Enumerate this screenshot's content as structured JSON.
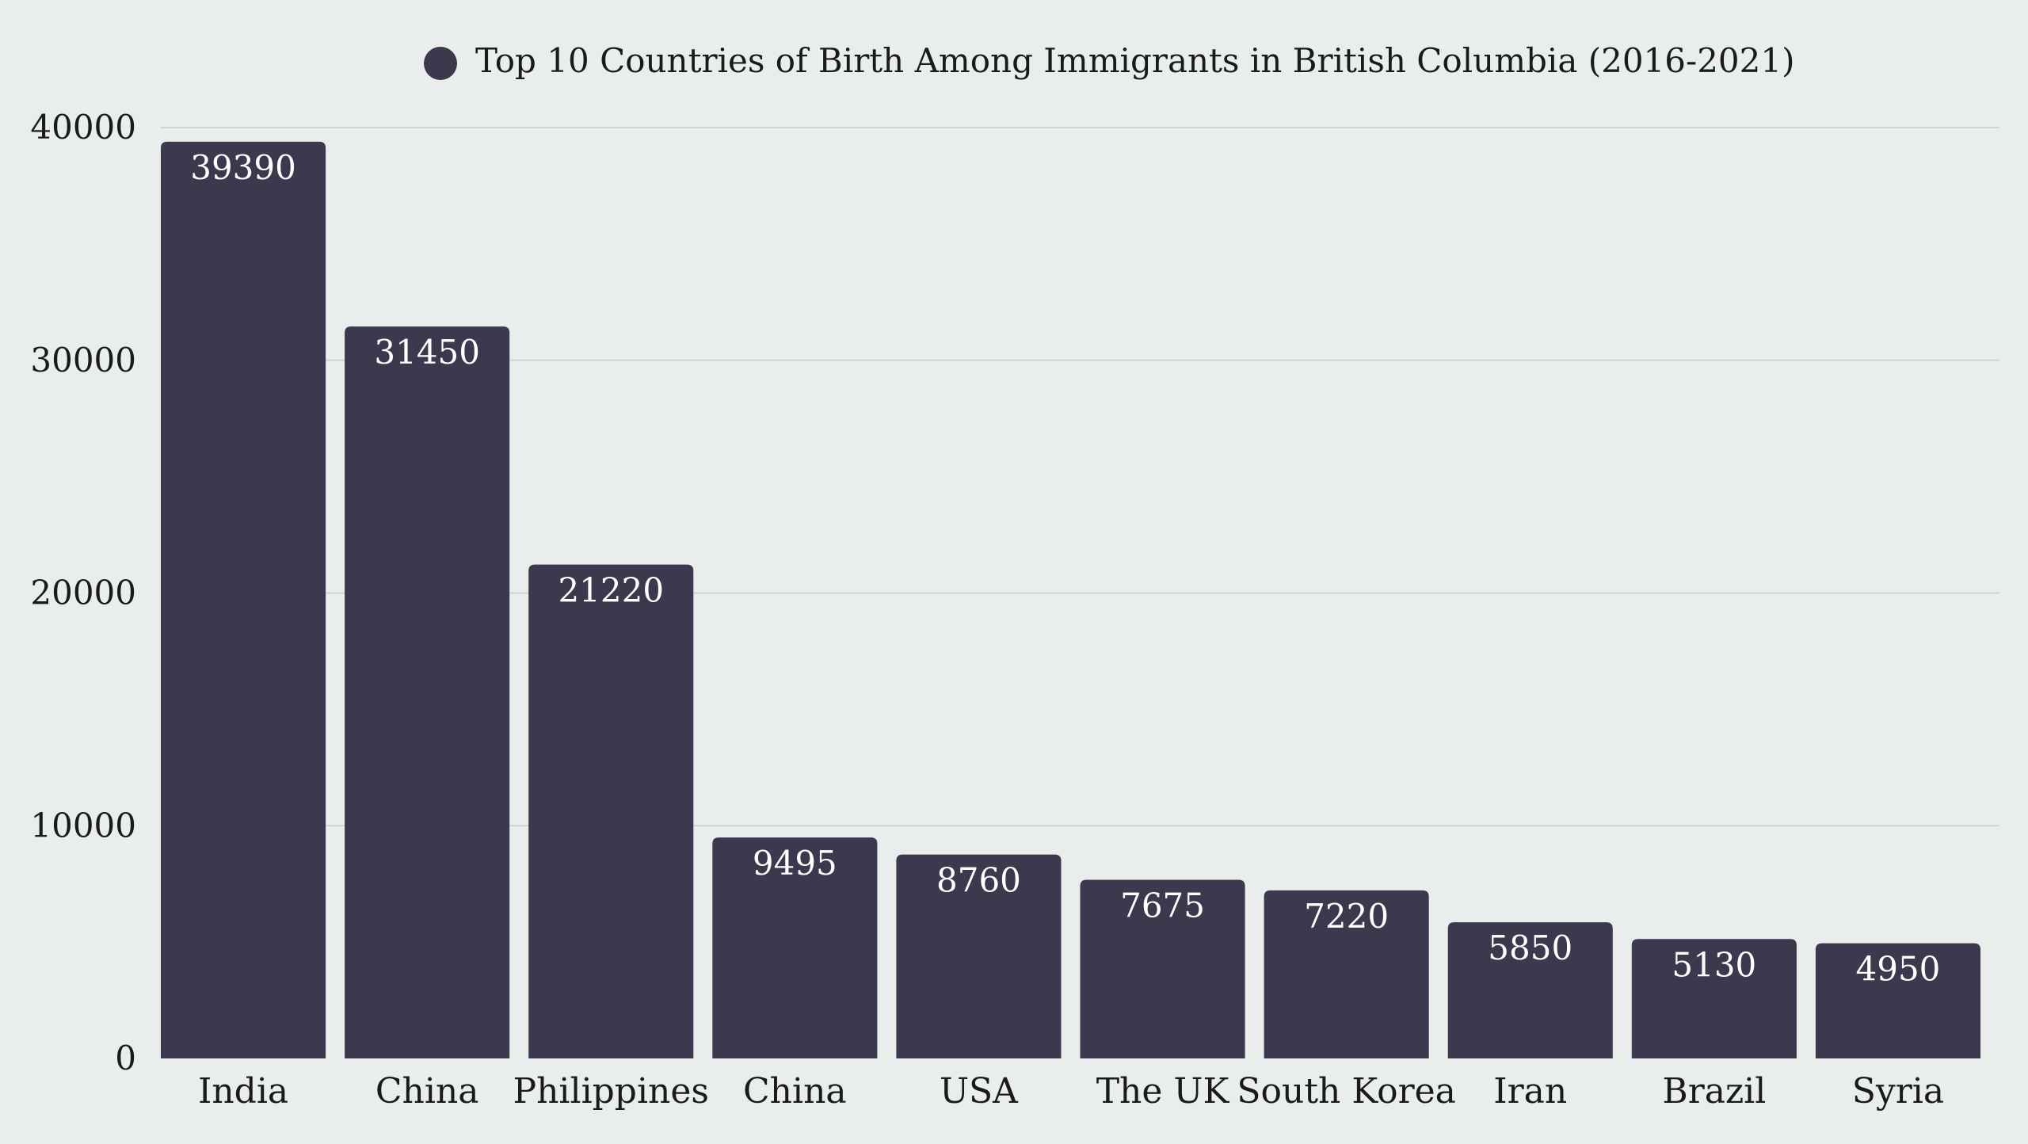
{
  "chart_data": {
    "type": "bar",
    "title": "",
    "xlabel": "",
    "ylabel": "",
    "legend": {
      "position": "top-center",
      "entries": [
        "Top 10 Countries of Birth Among Immigrants in British Columbia (2016-2021)"
      ]
    },
    "categories": [
      "India",
      "China",
      "Philippines",
      "China",
      "USA",
      "The UK",
      "South Korea",
      "Iran",
      "Brazil",
      "Syria"
    ],
    "series": [
      {
        "name": "Top 10 Countries of Birth Among Immigrants in British Columbia (2016-2021)",
        "values": [
          39390,
          31450,
          21220,
          9495,
          8760,
          7675,
          7220,
          5850,
          5130,
          4950
        ],
        "color": "#3d384e"
      }
    ],
    "data_labels": [
      "39390",
      "31450",
      "21220",
      "9495",
      "8760",
      "7675",
      "7220",
      "5850",
      "5130",
      "4950"
    ],
    "ylim": [
      0,
      40000
    ],
    "yticks": [
      "0",
      "10000",
      "20000",
      "30000",
      "40000"
    ],
    "grid": true,
    "colors": {
      "background": "#e9eeed",
      "bar": "#3d384e",
      "grid": "#cfd3d3",
      "text": "#1a1a1a",
      "label_text": "#ffffff"
    }
  }
}
